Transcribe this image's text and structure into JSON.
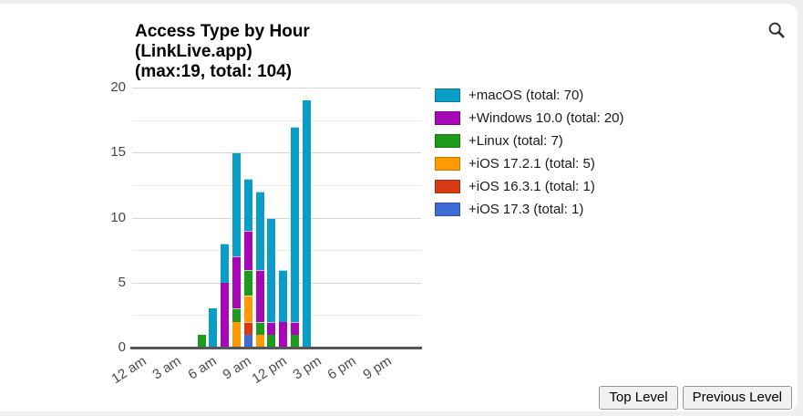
{
  "header": {
    "title_lines": [
      "Access Type by Hour",
      "(LinkLive.app)",
      "(max:19, total: 104)"
    ]
  },
  "toolbar": {
    "search_icon": "magnifier"
  },
  "legend": {
    "position": "right",
    "items": [
      {
        "label": "+macOS (total: 70)",
        "color": "#0a9ec7"
      },
      {
        "label": "+Windows 10.0 (total: 20)",
        "color": "#a508b4"
      },
      {
        "label": "+Linux (total: 7)",
        "color": "#1b9a1b"
      },
      {
        "label": "+iOS 17.2.1 (total: 5)",
        "color": "#ff9a02"
      },
      {
        "label": "+iOS 16.3.1 (total: 1)",
        "color": "#d63b14"
      },
      {
        "label": "+iOS 17.3 (total: 1)",
        "color": "#3e6bd5"
      }
    ]
  },
  "chart_data": {
    "type": "bar",
    "stacked": true,
    "title": "Access Type by Hour (LinkLive.app) (max:19, total: 104)",
    "max": 19,
    "total": 104,
    "xlabel": "",
    "ylabel": "",
    "grid": true,
    "grid_step": 2.5,
    "ylim": [
      0,
      20
    ],
    "y_ticks": [
      0,
      5,
      10,
      15,
      20
    ],
    "x_tick_labels": [
      "12 am",
      "3 am",
      "6 am",
      "9 am",
      "12 pm",
      "3 pm",
      "6 pm",
      "9 pm"
    ],
    "x_tick_hours": [
      0,
      3,
      6,
      9,
      12,
      15,
      18,
      21
    ],
    "categories": [
      "5 am",
      "6 am",
      "7 am",
      "8 am",
      "9 am",
      "10 am",
      "11 am",
      "12 pm",
      "1 pm",
      "2 pm"
    ],
    "categories_hours": [
      5,
      6,
      7,
      8,
      9,
      10,
      11,
      12,
      13,
      14
    ],
    "bar_totals": [
      1,
      3,
      8,
      15,
      13,
      12,
      10,
      6,
      17,
      19
    ],
    "stack_order": "bottom-to-top is reverse of series order (macOS on top)",
    "series": [
      {
        "name": "+macOS",
        "total": 70,
        "color": "#0a9ec7",
        "values": [
          0,
          3,
          3,
          8,
          4,
          6,
          8,
          4,
          15,
          19
        ]
      },
      {
        "name": "+Windows 10.0",
        "total": 20,
        "color": "#a508b4",
        "values": [
          0,
          0,
          5,
          4,
          3,
          4,
          1,
          2,
          1,
          0
        ]
      },
      {
        "name": "+Linux",
        "total": 7,
        "color": "#1b9a1b",
        "values": [
          1,
          0,
          0,
          1,
          2,
          1,
          1,
          0,
          1,
          0
        ]
      },
      {
        "name": "+iOS 17.2.1",
        "total": 5,
        "color": "#ff9a02",
        "values": [
          0,
          0,
          0,
          2,
          2,
          1,
          0,
          0,
          0,
          0
        ]
      },
      {
        "name": "+iOS 16.3.1",
        "total": 1,
        "color": "#d63b14",
        "values": [
          0,
          0,
          0,
          0,
          1,
          0,
          0,
          0,
          0,
          0
        ]
      },
      {
        "name": "+iOS 17.3",
        "total": 1,
        "color": "#3e6bd5",
        "values": [
          0,
          0,
          0,
          0,
          1,
          0,
          0,
          0,
          0,
          0
        ]
      }
    ]
  },
  "footer": {
    "buttons": [
      {
        "label": "Top Level"
      },
      {
        "label": "Previous Level"
      }
    ]
  }
}
